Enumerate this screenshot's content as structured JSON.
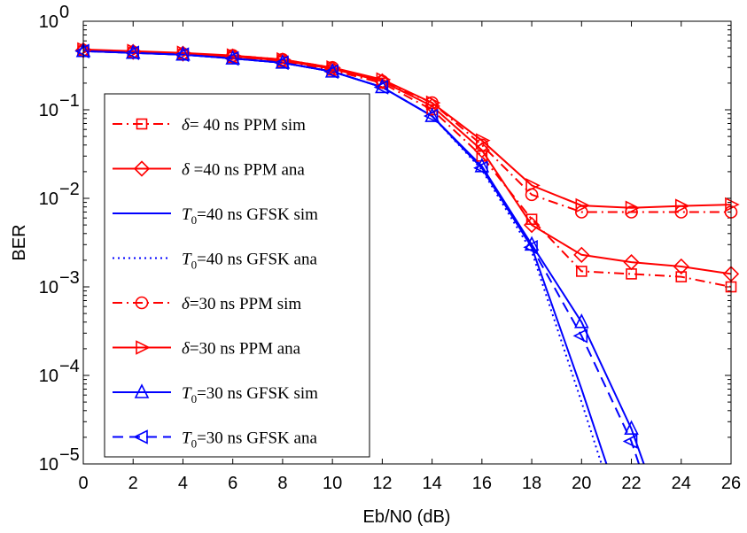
{
  "chart_data": {
    "type": "line",
    "xlabel": "Eb/N0 (dB)",
    "ylabel": "BER",
    "x_ticks": [
      "0",
      "2",
      "4",
      "6",
      "8",
      "10",
      "12",
      "14",
      "16",
      "18",
      "20",
      "22",
      "24",
      "26"
    ],
    "y_ticks": [
      {
        "base": "10",
        "exp": "0",
        "value": 1
      },
      {
        "base": "10",
        "exp": "−1",
        "value": 0.1
      },
      {
        "base": "10",
        "exp": "−2",
        "value": 0.01
      },
      {
        "base": "10",
        "exp": "−3",
        "value": 0.001
      },
      {
        "base": "10",
        "exp": "−4",
        "value": 0.0001
      },
      {
        "base": "10",
        "exp": "−5",
        "value": 1e-05
      }
    ],
    "xlim": [
      0,
      26
    ],
    "ylim": [
      1e-05,
      1
    ],
    "yscale": "log",
    "grid": false,
    "legend_position": "left",
    "series": [
      {
        "legend": {
          "sym": "δ",
          "sub": "",
          "text": "= 40 ns PPM sim"
        },
        "color": "#ff0000",
        "dash": "dashdot",
        "marker": "square",
        "x": [
          0,
          2,
          4,
          6,
          8,
          10,
          12,
          14,
          16,
          18,
          20,
          22,
          24,
          26
        ],
        "y": [
          0.46,
          0.44,
          0.42,
          0.39,
          0.35,
          0.28,
          0.2,
          0.1,
          0.03,
          0.0058,
          0.0015,
          0.0014,
          0.0013,
          0.001
        ]
      },
      {
        "legend": {
          "sym": "δ",
          "sub": "",
          "text": " =40 ns PPM ana"
        },
        "color": "#ff0000",
        "dash": "solid",
        "marker": "diamond",
        "x": [
          0,
          2,
          4,
          6,
          8,
          10,
          12,
          14,
          16,
          18,
          20,
          22,
          24,
          26
        ],
        "y": [
          0.47,
          0.45,
          0.43,
          0.4,
          0.36,
          0.29,
          0.21,
          0.11,
          0.035,
          0.005,
          0.0023,
          0.0019,
          0.0017,
          0.0014
        ]
      },
      {
        "legend": {
          "sym": "T",
          "sub": "0",
          "text": "=40 ns GFSK sim"
        },
        "color": "#0000ff",
        "dash": "solid",
        "marker": "none",
        "x": [
          0,
          2,
          4,
          6,
          8,
          10,
          12,
          14,
          16,
          18,
          20,
          21
        ],
        "y": [
          0.46,
          0.44,
          0.42,
          0.38,
          0.34,
          0.27,
          0.18,
          0.085,
          0.022,
          0.0028,
          7e-05,
          1e-05
        ]
      },
      {
        "legend": {
          "sym": "T",
          "sub": "0",
          "text": "=40 ns GFSK ana"
        },
        "color": "#0000ff",
        "dash": "dotted",
        "marker": "none",
        "x": [
          0,
          2,
          4,
          6,
          8,
          10,
          12,
          14,
          16,
          18,
          20,
          20.8
        ],
        "y": [
          0.46,
          0.44,
          0.42,
          0.38,
          0.34,
          0.27,
          0.18,
          0.085,
          0.021,
          0.0025,
          5e-05,
          1e-05
        ]
      },
      {
        "legend": {
          "sym": "δ",
          "sub": "",
          "text": "=30 ns PPM sim"
        },
        "color": "#ff0000",
        "dash": "dashdot",
        "marker": "circle",
        "x": [
          0,
          2,
          4,
          6,
          8,
          10,
          12,
          14,
          16,
          18,
          20,
          22,
          24,
          26
        ],
        "y": [
          0.47,
          0.45,
          0.43,
          0.41,
          0.37,
          0.3,
          0.21,
          0.12,
          0.04,
          0.011,
          0.007,
          0.007,
          0.007,
          0.007
        ]
      },
      {
        "legend": {
          "sym": "δ",
          "sub": "",
          "text": "=30 ns PPM ana"
        },
        "color": "#ff0000",
        "dash": "solid",
        "marker": "triangle-right",
        "x": [
          0,
          2,
          4,
          6,
          8,
          10,
          12,
          14,
          16,
          18,
          20,
          22,
          24,
          26
        ],
        "y": [
          0.48,
          0.46,
          0.44,
          0.41,
          0.37,
          0.3,
          0.22,
          0.12,
          0.045,
          0.014,
          0.0083,
          0.0078,
          0.0082,
          0.0085
        ]
      },
      {
        "legend": {
          "sym": "T",
          "sub": "0",
          "text": "=30 ns GFSK sim"
        },
        "color": "#0000ff",
        "dash": "solid",
        "marker": "triangle-up",
        "x": [
          0,
          2,
          4,
          6,
          8,
          10,
          12,
          14,
          16,
          18,
          20,
          22,
          22.5
        ],
        "y": [
          0.46,
          0.44,
          0.42,
          0.38,
          0.34,
          0.27,
          0.18,
          0.085,
          0.023,
          0.003,
          0.0004,
          2.5e-05,
          1e-05
        ]
      },
      {
        "legend": {
          "sym": "T",
          "sub": "0",
          "text": "=30 ns GFSK ana"
        },
        "color": "#0000ff",
        "dash": "dashed",
        "marker": "triangle-left",
        "x": [
          0,
          2,
          4,
          6,
          8,
          10,
          12,
          14,
          16,
          18,
          20,
          22,
          22.3
        ],
        "y": [
          0.46,
          0.44,
          0.42,
          0.38,
          0.34,
          0.27,
          0.18,
          0.085,
          0.022,
          0.0028,
          0.00028,
          1.8e-05,
          1e-05
        ]
      }
    ]
  }
}
